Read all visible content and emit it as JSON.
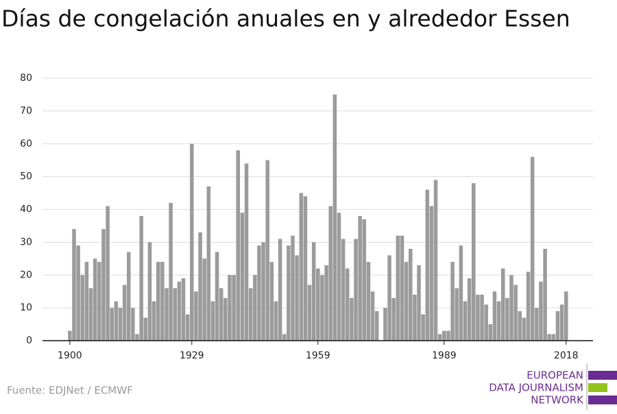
{
  "chart_data": {
    "type": "bar",
    "title": "Días de congelación anuales en y alrededor Essen",
    "source": "Fuente: EDJNet / ECMWF",
    "logo": [
      "EUROPEAN",
      "DATA JOURNALISM",
      "NETWORK"
    ],
    "color": "#9b9b9b",
    "grid": true,
    "x": [
      1900,
      1901,
      1902,
      1903,
      1904,
      1905,
      1906,
      1907,
      1908,
      1909,
      1910,
      1911,
      1912,
      1913,
      1914,
      1915,
      1916,
      1917,
      1918,
      1919,
      1920,
      1921,
      1922,
      1923,
      1924,
      1925,
      1926,
      1927,
      1928,
      1929,
      1930,
      1931,
      1932,
      1933,
      1934,
      1935,
      1936,
      1937,
      1938,
      1939,
      1940,
      1941,
      1942,
      1943,
      1944,
      1945,
      1946,
      1947,
      1948,
      1949,
      1950,
      1951,
      1952,
      1953,
      1954,
      1955,
      1956,
      1957,
      1958,
      1959,
      1960,
      1961,
      1962,
      1963,
      1964,
      1965,
      1966,
      1967,
      1968,
      1969,
      1970,
      1971,
      1972,
      1973,
      1974,
      1975,
      1976,
      1977,
      1978,
      1979,
      1980,
      1981,
      1982,
      1983,
      1984,
      1985,
      1986,
      1987,
      1988,
      1989,
      1990,
      1991,
      1992,
      1993,
      1994,
      1995,
      1996,
      1997,
      1998,
      1999,
      2000,
      2001,
      2002,
      2003,
      2004,
      2005,
      2006,
      2007,
      2008,
      2009,
      2010,
      2011,
      2012,
      2013,
      2014,
      2015,
      2016,
      2017,
      2018
    ],
    "values": [
      3,
      34,
      29,
      20,
      24,
      16,
      25,
      24,
      34,
      41,
      10,
      12,
      10,
      17,
      27,
      10,
      2,
      38,
      7,
      30,
      12,
      24,
      24,
      16,
      42,
      16,
      18,
      19,
      8,
      60,
      15,
      33,
      25,
      47,
      12,
      27,
      16,
      13,
      20,
      20,
      58,
      39,
      54,
      16,
      20,
      29,
      30,
      55,
      24,
      12,
      31,
      2,
      29,
      32,
      26,
      45,
      44,
      17,
      30,
      22,
      20,
      23,
      41,
      75,
      39,
      31,
      22,
      13,
      31,
      38,
      37,
      24,
      15,
      9,
      0,
      10,
      26,
      13,
      32,
      32,
      24,
      28,
      14,
      23,
      8,
      46,
      41,
      49,
      2,
      3,
      3,
      24,
      16,
      29,
      12,
      19,
      48,
      14,
      14,
      11,
      5,
      15,
      12,
      22,
      13,
      20,
      17,
      9,
      7,
      21,
      56,
      10,
      18,
      28,
      2,
      2,
      9,
      11,
      15
    ],
    "xlim": [
      1893.5,
      2024.4
    ],
    "xticks": [
      1900,
      1929,
      1959,
      1989,
      2018
    ],
    "ylim": [
      0,
      80
    ],
    "yticks": [
      0,
      10,
      20,
      30,
      40,
      50,
      60,
      70,
      80
    ]
  }
}
